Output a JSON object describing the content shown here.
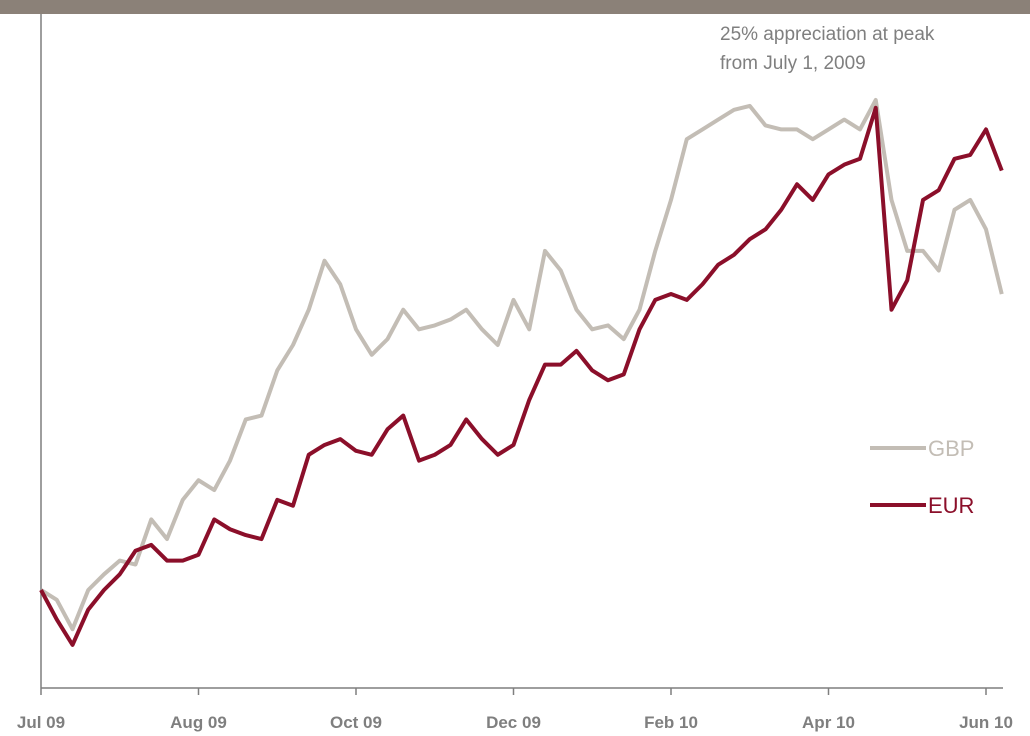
{
  "chart_data": {
    "type": "line",
    "annotation": [
      "25% appreciation at peak",
      "from July 1, 2009"
    ],
    "categories": [
      "Jul 09",
      null,
      null,
      null,
      null,
      null,
      null,
      null,
      null,
      null,
      "Aug 09",
      null,
      null,
      null,
      null,
      null,
      null,
      null,
      null,
      null,
      "Oct 09",
      null,
      null,
      null,
      null,
      null,
      null,
      null,
      null,
      null,
      "Dec 09",
      null,
      null,
      null,
      null,
      null,
      null,
      null,
      null,
      null,
      "Feb 10",
      null,
      null,
      null,
      null,
      null,
      null,
      null,
      null,
      null,
      "Apr 10",
      null,
      null,
      null,
      null,
      null,
      null,
      null,
      null,
      null,
      "Jun 10",
      null
    ],
    "series": [
      {
        "name": "GBP",
        "color": "#c3bdb5",
        "values": [
          0,
          -0.5,
          -2.0,
          0,
          0.8,
          1.5,
          1.3,
          3.6,
          2.6,
          4.6,
          5.6,
          5.1,
          6.6,
          8.7,
          8.9,
          11.2,
          12.5,
          14.3,
          16.8,
          15.6,
          13.3,
          12.0,
          12.8,
          14.3,
          13.3,
          13.5,
          13.8,
          14.3,
          13.3,
          12.5,
          14.8,
          13.3,
          17.3,
          16.3,
          14.3,
          13.3,
          13.5,
          12.8,
          14.3,
          17.3,
          19.9,
          23.0,
          23.5,
          24.0,
          24.5,
          24.7,
          23.7,
          23.5,
          23.5,
          23.0,
          23.5,
          24.0,
          23.5,
          25.0,
          19.9,
          17.3,
          17.3,
          16.3,
          19.4,
          19.9,
          18.4,
          15.1
        ]
      },
      {
        "name": "EUR",
        "color": "#8b0f2a",
        "values": [
          0,
          -1.5,
          -2.8,
          -1.0,
          0,
          0.8,
          2.0,
          2.3,
          1.5,
          1.5,
          1.8,
          3.6,
          3.1,
          2.8,
          2.6,
          4.6,
          4.3,
          6.9,
          7.4,
          7.7,
          7.1,
          6.9,
          8.2,
          8.9,
          6.6,
          6.9,
          7.4,
          8.7,
          7.7,
          6.9,
          7.4,
          9.7,
          11.5,
          11.5,
          12.2,
          11.2,
          10.7,
          11.0,
          13.3,
          14.8,
          15.1,
          14.8,
          15.6,
          16.6,
          17.1,
          17.9,
          18.4,
          19.4,
          20.7,
          19.9,
          21.2,
          21.7,
          22.0,
          24.6,
          14.3,
          15.8,
          19.9,
          20.4,
          22.0,
          22.2,
          23.5,
          21.4
        ]
      }
    ],
    "ylim": [
      -5,
      30
    ],
    "legend": "right"
  }
}
